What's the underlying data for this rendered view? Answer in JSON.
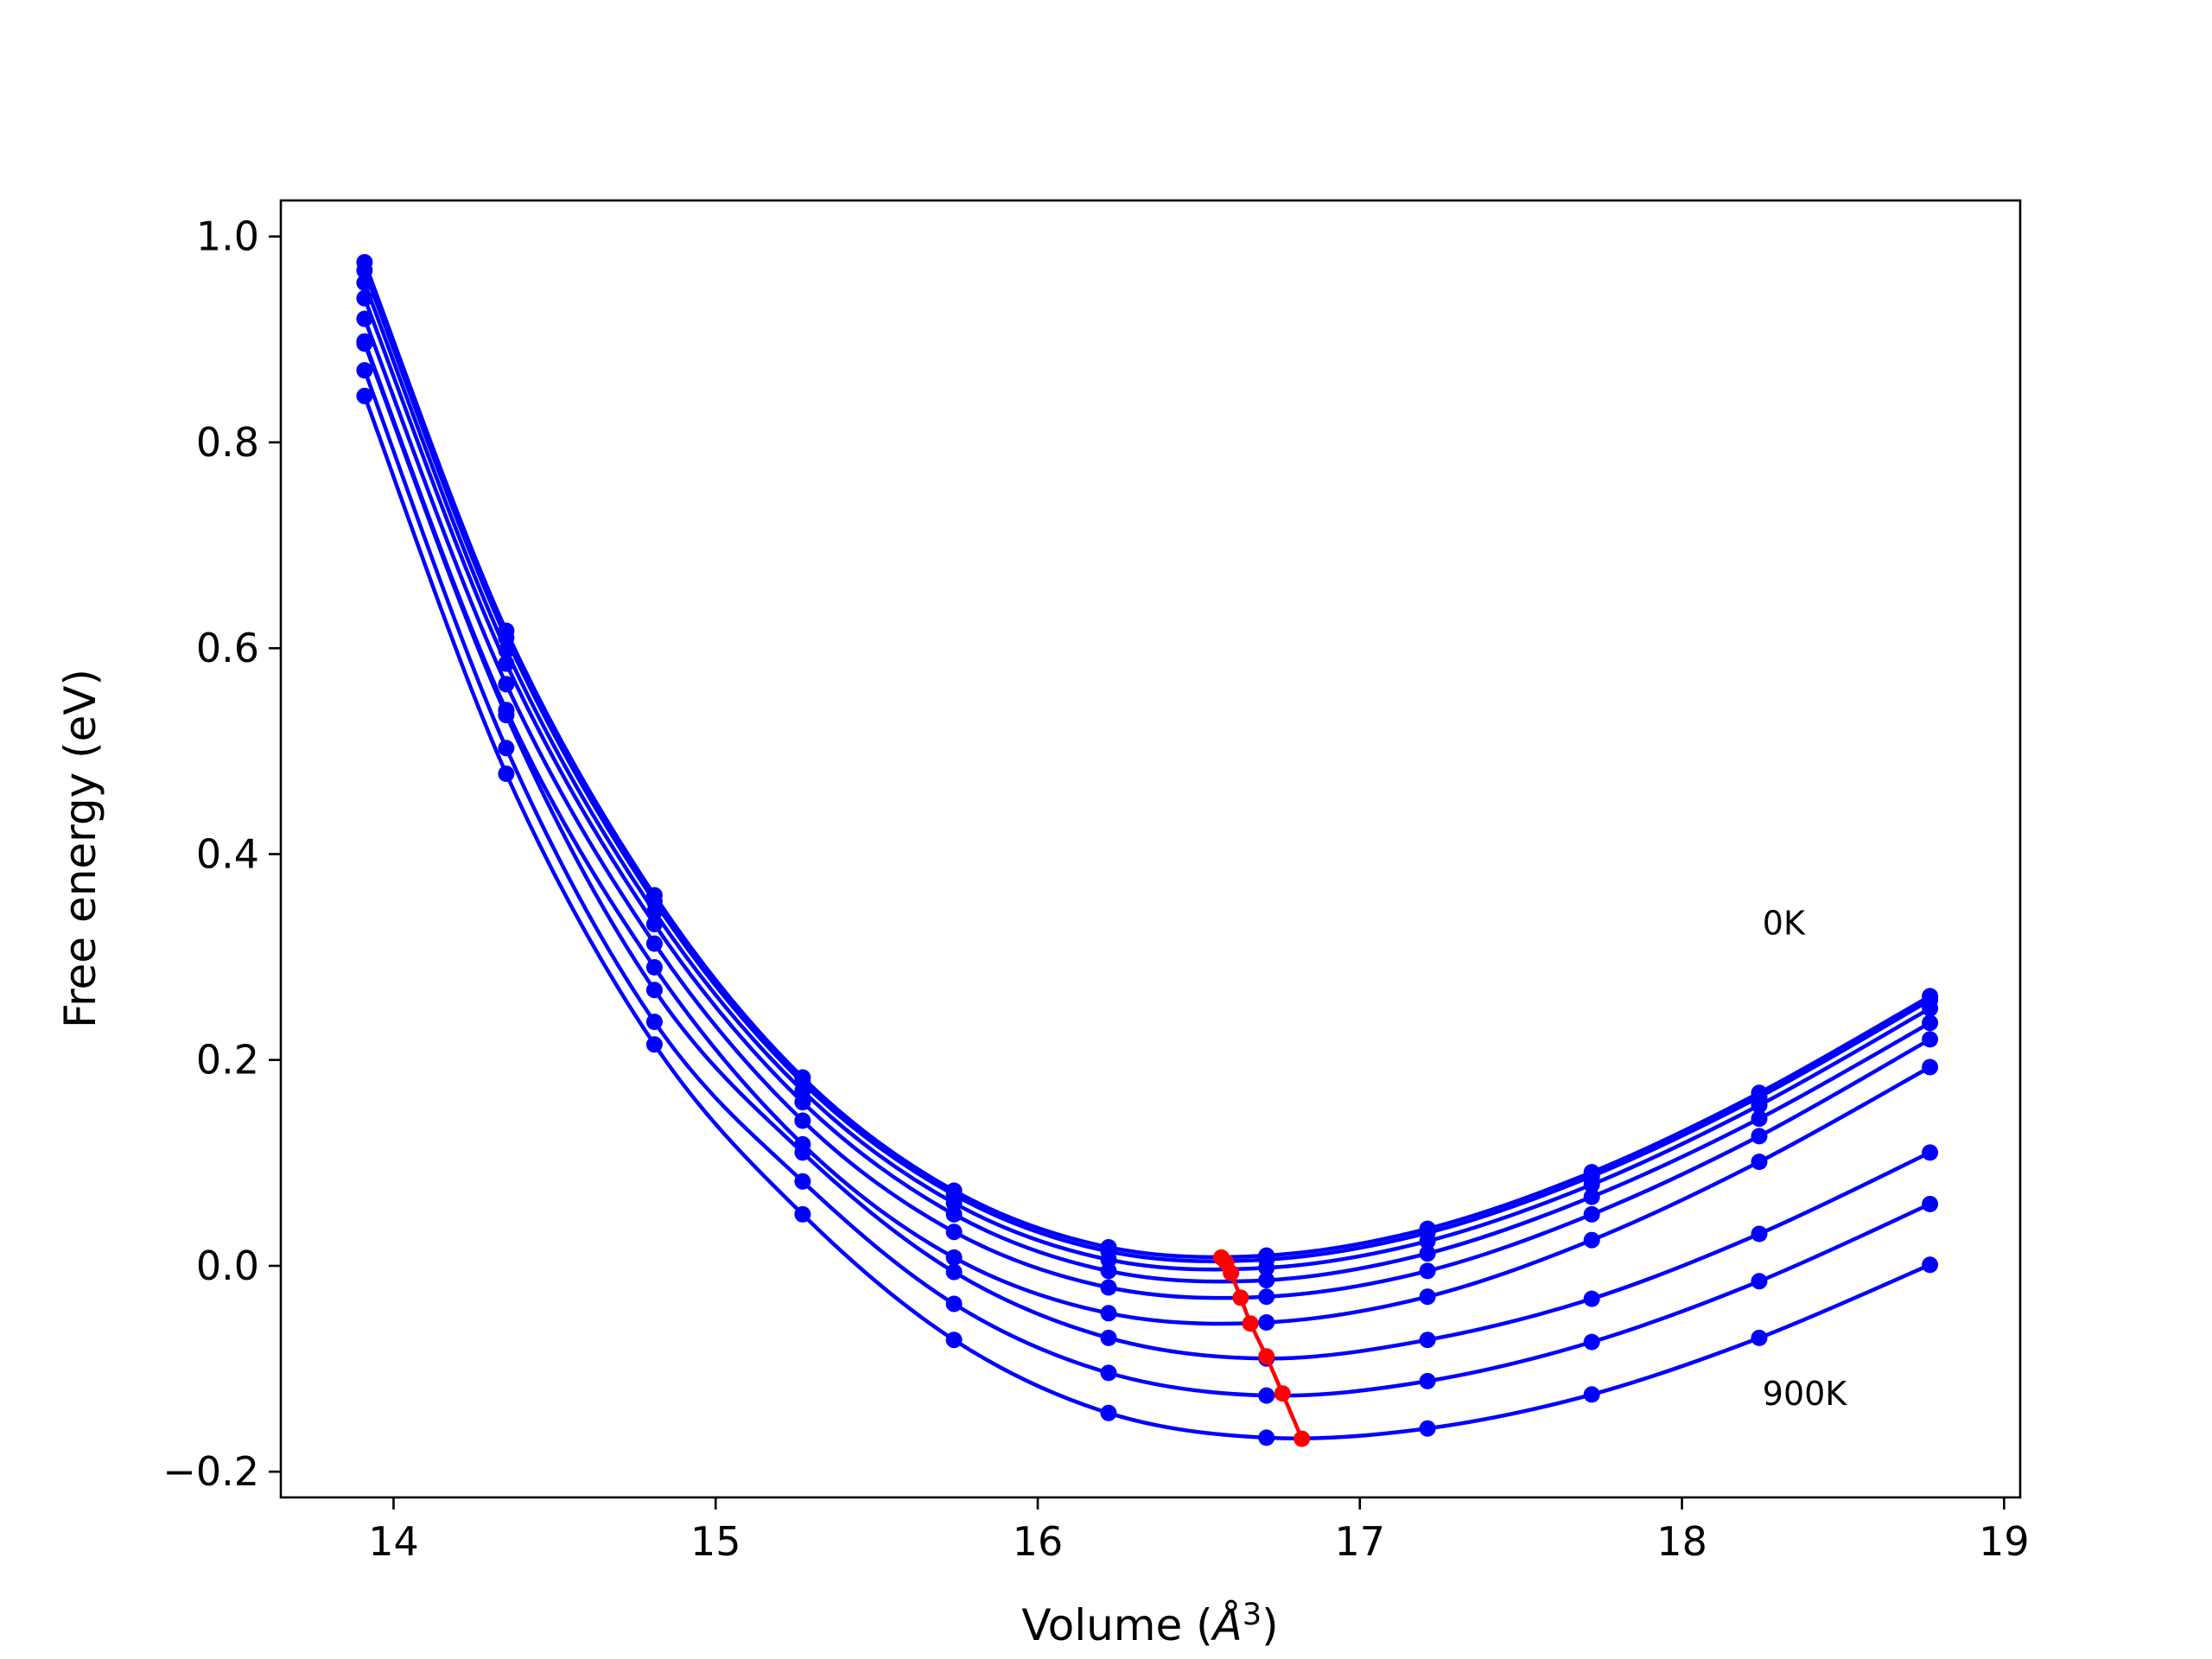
{
  "chart_data": {
    "type": "line",
    "title": "",
    "xlabel": "Volume (",
    "xlabel_unit": "Å",
    "xlabel_exp": "3",
    "xlabel_close": ")",
    "ylabel": "Free energy (eV)",
    "xlim": [
      13.65,
      19.05
    ],
    "ylim": [
      -0.225,
      1.035
    ],
    "xticks": [
      14,
      15,
      16,
      17,
      18,
      19
    ],
    "yticks": [
      -0.2,
      0.0,
      0.2,
      0.4,
      0.6,
      0.8,
      1.0
    ],
    "ytick_labels": [
      "−0.2",
      "0.0",
      "0.2",
      "0.4",
      "0.6",
      "0.8",
      "1.0"
    ],
    "xtick_labels": [
      "14",
      "15",
      "16",
      "17",
      "18",
      "19"
    ],
    "grid": false,
    "curve_color": "#0000ff",
    "min_color": "#ff0000",
    "x": [
      13.91,
      14.35,
      14.81,
      15.27,
      15.74,
      16.22,
      16.71,
      17.21,
      17.72,
      18.24,
      18.77
    ],
    "series": [
      {
        "values": [
          0.975,
          0.617,
          0.36,
          0.183,
          0.073,
          0.018,
          0.01,
          0.036,
          0.091,
          0.168,
          0.262
        ]
      },
      {
        "values": [
          0.967,
          0.61,
          0.354,
          0.178,
          0.069,
          0.014,
          0.006,
          0.032,
          0.087,
          0.164,
          0.258
        ]
      },
      {
        "values": [
          0.955,
          0.598,
          0.344,
          0.17,
          0.061,
          0.006,
          -0.002,
          0.024,
          0.079,
          0.156,
          0.25
        ]
      },
      {
        "values": [
          0.94,
          0.585,
          0.332,
          0.159,
          0.05,
          -0.005,
          -0.014,
          0.012,
          0.067,
          0.143,
          0.236
        ]
      },
      {
        "values": [
          0.92,
          0.565,
          0.313,
          0.141,
          0.033,
          -0.021,
          -0.03,
          -0.005,
          0.05,
          0.126,
          0.22
        ]
      },
      {
        "values": [
          0.898,
          0.54,
          0.29,
          0.118,
          0.008,
          -0.046,
          -0.055,
          -0.03,
          0.025,
          0.101,
          0.193
        ]
      },
      {
        "values": [
          0.896,
          0.535,
          0.268,
          0.11,
          -0.006,
          -0.07,
          -0.09,
          -0.072,
          -0.032,
          0.031,
          0.11
        ]
      },
      {
        "values": [
          0.87,
          0.503,
          0.237,
          0.082,
          -0.037,
          -0.104,
          -0.126,
          -0.112,
          -0.074,
          -0.015,
          0.06
        ]
      },
      {
        "values": [
          0.845,
          0.478,
          0.215,
          0.05,
          -0.072,
          -0.143,
          -0.167,
          -0.158,
          -0.125,
          -0.07,
          0.001
        ]
      }
    ],
    "minimum_path": {
      "x": [
        16.57,
        16.585,
        16.6,
        16.63,
        16.66,
        16.71,
        16.76,
        16.82
      ],
      "y": [
        0.008,
        0.003,
        -0.007,
        -0.031,
        -0.056,
        -0.088,
        -0.124,
        -0.168
      ]
    },
    "annotations": [
      {
        "text": "0K",
        "x": 18.25,
        "y": 0.322
      },
      {
        "text": "900K",
        "x": 18.25,
        "y": -0.135
      }
    ]
  }
}
